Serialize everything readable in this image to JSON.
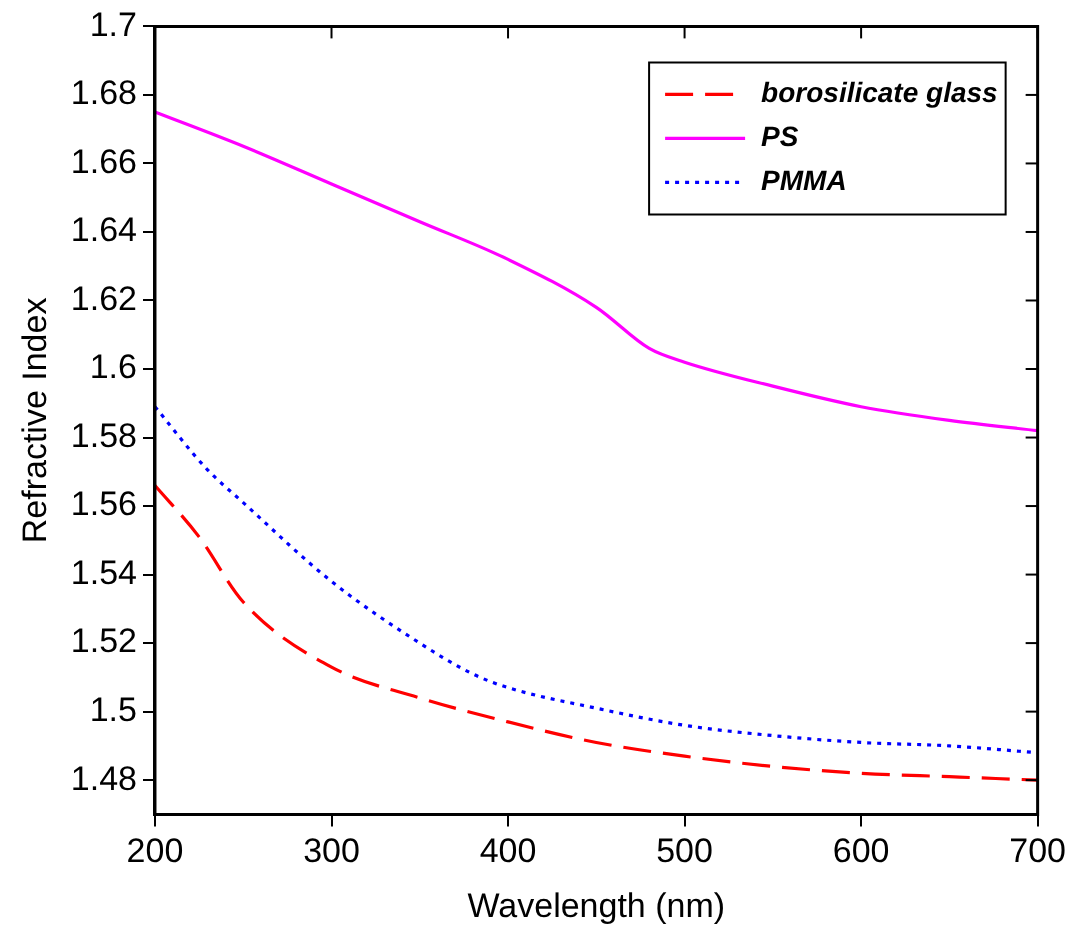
{
  "chart_data": {
    "type": "line",
    "xlabel": "Wavelength (nm)",
    "ylabel": "Refractive Index",
    "xlim": [
      200,
      700
    ],
    "xticks": [
      200,
      300,
      400,
      500,
      600,
      700
    ],
    "ylim": [
      1.47,
      1.7
    ],
    "yticks": [
      {
        "value": 1.48,
        "label": "1.48"
      },
      {
        "value": 1.5,
        "label": "1.5"
      },
      {
        "value": 1.52,
        "label": "1.52"
      },
      {
        "value": 1.54,
        "label": "1.54"
      },
      {
        "value": 1.56,
        "label": "1.56"
      },
      {
        "value": 1.58,
        "label": "1.58"
      },
      {
        "value": 1.6,
        "label": "1.6"
      },
      {
        "value": 1.62,
        "label": "1.62"
      },
      {
        "value": 1.64,
        "label": "1.64"
      },
      {
        "value": 1.66,
        "label": "1.66"
      },
      {
        "value": 1.68,
        "label": "1.68"
      },
      {
        "value": 1.7,
        "label": "1.7"
      }
    ],
    "grid": false,
    "legend": "top right",
    "marker": "none",
    "series": [
      {
        "name": "borosilicate glass",
        "color": "#ff0000",
        "line_style": "dashed",
        "x": [
          200,
          225,
          250,
          300,
          350,
          400,
          450,
          500,
          550,
          600,
          650,
          700
        ],
        "values": [
          1.566,
          1.551,
          1.532,
          1.513,
          1.504,
          1.497,
          1.491,
          1.487,
          1.484,
          1.482,
          1.481,
          1.48
        ]
      },
      {
        "name": "PS",
        "color": "#ff00ff",
        "line_style": "solid",
        "x": [
          200,
          250,
          300,
          350,
          400,
          450,
          480,
          500,
          550,
          600,
          650,
          700
        ],
        "values": [
          1.675,
          1.665,
          1.654,
          1.643,
          1.632,
          1.618,
          1.606,
          1.602,
          1.595,
          1.589,
          1.585,
          1.582
        ]
      },
      {
        "name": "PMMA",
        "color": "#0000ff",
        "line_style": "dotted",
        "x": [
          200,
          229,
          250,
          300,
          350,
          380,
          400,
          450,
          500,
          550,
          600,
          650,
          700
        ],
        "values": [
          1.589,
          1.571,
          1.561,
          1.538,
          1.52,
          1.511,
          1.507,
          1.501,
          1.496,
          1.493,
          1.491,
          1.49,
          1.488
        ]
      }
    ]
  }
}
